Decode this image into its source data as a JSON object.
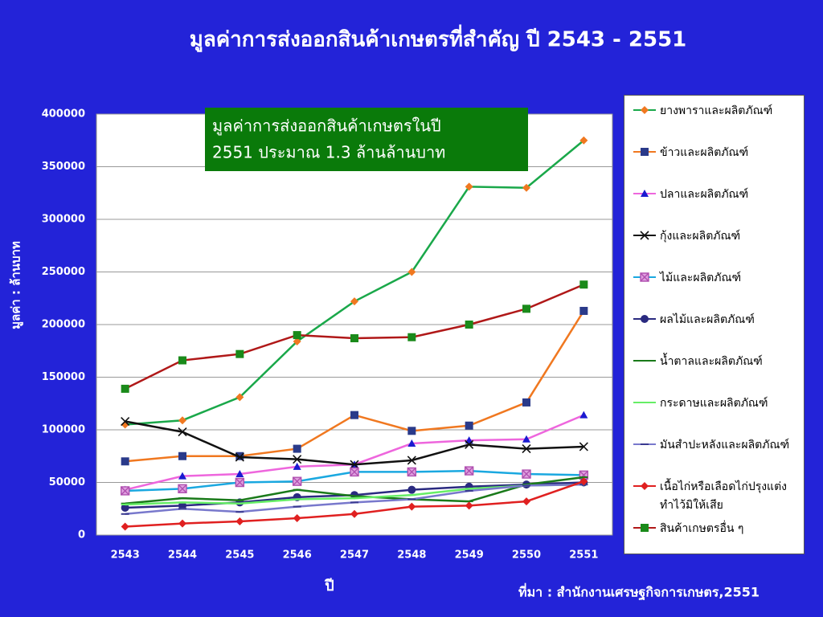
{
  "chart_data": {
    "type": "line",
    "title": "มูลค่าการส่งออกสินค้าเกษตรที่สำคัญ ปี 2543 - 2551",
    "annotation": [
      "มูลค่าการส่งออกสินค้าเกษตรในปี",
      "2551 ประมาณ 1.3 ล้านล้านบาท"
    ],
    "y_label": "มูลค่า : ล้านบาท",
    "x_label": "ปี",
    "source": "ที่มา : สำนักงานเศรษฐกิจการเกษตร,2551",
    "categories": [
      "2543",
      "2544",
      "2545",
      "2546",
      "2547",
      "2548",
      "2549",
      "2550",
      "2551"
    ],
    "ylim": [
      0,
      400000
    ],
    "yticks": [
      0,
      50000,
      100000,
      150000,
      200000,
      250000,
      300000,
      350000,
      400000
    ],
    "grid": true,
    "legend": "right",
    "series": [
      {
        "name": "ยางพาราและผลิตภัณฑ์",
        "color": "#1aa84a",
        "marker": "diamond",
        "marker_color": "#f07820",
        "values": [
          105000,
          109000,
          131000,
          184000,
          222000,
          250000,
          331000,
          330000,
          375000
        ]
      },
      {
        "name": "ข้าวและผลิตภัณฑ์",
        "color": "#f07820",
        "marker": "square",
        "marker_color": "#2a3a8a",
        "values": [
          70000,
          75000,
          75000,
          82000,
          114000,
          99000,
          104000,
          126000,
          213000
        ]
      },
      {
        "name": "ปลาและผลิตภัณฑ์",
        "color": "#ee66dd",
        "marker": "triangle",
        "marker_color": "#1a1ad0",
        "values": [
          43000,
          56000,
          58000,
          65000,
          67000,
          87000,
          90000,
          91000,
          114000
        ]
      },
      {
        "name": "กุ้งและผลิตภัณฑ์",
        "color": "#111111",
        "marker": "x",
        "marker_color": "#111111",
        "values": [
          108000,
          98000,
          74000,
          72000,
          67000,
          71000,
          86000,
          82000,
          84000
        ]
      },
      {
        "name": "ไม้และผลิตภัณฑ์",
        "color": "#1aa8e0",
        "marker": "square-x",
        "marker_color": "#b050b0",
        "values": [
          42000,
          44000,
          50000,
          51000,
          60000,
          60000,
          61000,
          58000,
          57000
        ]
      },
      {
        "name": "ผลไม้และผลิตภัณฑ์",
        "color": "#2a2a80",
        "marker": "circle",
        "marker_color": "#2a2a80",
        "values": [
          26000,
          28000,
          31000,
          36000,
          38000,
          43000,
          46000,
          48000,
          50000
        ]
      },
      {
        "name": "น้ำตาลและผลิตภัณฑ์",
        "color": "#1a7a1a",
        "marker": "dash",
        "marker_color": "#1a7a1a",
        "values": [
          30000,
          35000,
          33000,
          43000,
          37000,
          34000,
          32000,
          48000,
          55000
        ]
      },
      {
        "name": "กระดาษและผลิตภัณฑ์",
        "color": "#66ee66",
        "marker": "dash",
        "marker_color": "#66ee66",
        "values": [
          29000,
          31000,
          30000,
          34000,
          35000,
          38000,
          44000,
          47000,
          48000
        ]
      },
      {
        "name": "มันสำปะหลังและผลิตภัณฑ์",
        "color": "#7878cc",
        "marker": "dash",
        "marker_color": "#3a3a90",
        "values": [
          20000,
          25000,
          22000,
          27000,
          31000,
          34000,
          42000,
          47000,
          48000
        ]
      },
      {
        "name": "เนื้อไก่หรือเลือดไก่ปรุงแต่งทำไว้มิให้เสีย",
        "color": "#e02020",
        "marker": "diamond",
        "marker_color": "#e02020",
        "values": [
          8000,
          11000,
          13000,
          16000,
          20000,
          27000,
          28000,
          32000,
          51000
        ]
      },
      {
        "name": "สินค้าเกษตรอื่น ๆ",
        "color": "#b01818",
        "marker": "square",
        "marker_color": "#1a8a1a",
        "values": [
          139000,
          166000,
          172000,
          190000,
          187000,
          188000,
          200000,
          215000,
          238000
        ]
      }
    ]
  }
}
